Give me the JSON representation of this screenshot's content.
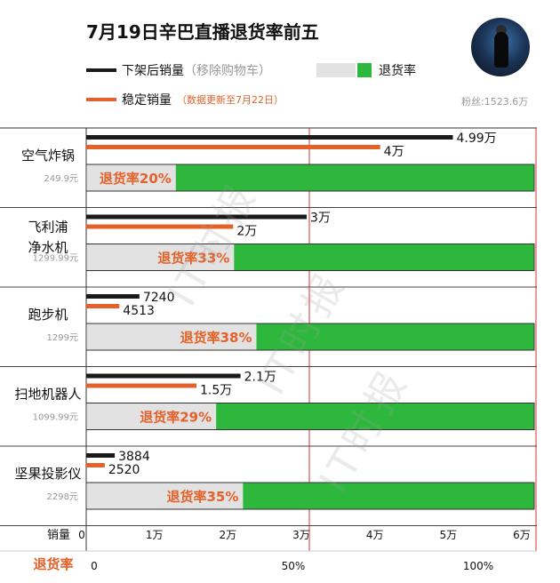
{
  "header": {
    "title": "7月19日辛巴直播退货率前五",
    "legend_takedown": "下架后销量",
    "legend_takedown_note": "（移除购物车）",
    "legend_return_rate": "退货率",
    "legend_stable": "稳定销量",
    "legend_stable_note": "（数据更新至7月22日）",
    "fans": "粉丝:1523.6万",
    "watermark": "IT时报"
  },
  "colors": {
    "takedown": "#1a1a1a",
    "stable": "#e4622a",
    "return_rate": "#2db83d",
    "return_bg": "#e2e2e2",
    "grid_red": "#d83030"
  },
  "chart_data": [
    {
      "type": "bar",
      "categories": [
        "空气炸锅",
        "飞利浦净水机",
        "跑步机",
        "扫地机器人",
        "坚果投影仪"
      ],
      "category_lines": [
        [
          "空气炸锅"
        ],
        [
          "飞利浦",
          "净水机"
        ],
        [
          "跑步机"
        ],
        [
          "扫地机器人"
        ],
        [
          "坚果投影仪"
        ]
      ],
      "prices": [
        "249.9元",
        "1299.99元",
        "1299元",
        "1099.99元",
        "2298元"
      ],
      "series": [
        {
          "name": "下架后销量",
          "values": [
            49900,
            30000,
            7240,
            21000,
            3884
          ],
          "labels": [
            "4.99万",
            "3万",
            "7240",
            "2.1万",
            "3884"
          ]
        },
        {
          "name": "稳定销量",
          "values": [
            40000,
            20000,
            4513,
            15000,
            2520
          ],
          "labels": [
            "4万",
            "2万",
            "4513",
            "1.5万",
            "2520"
          ]
        }
      ],
      "xlabel": "销量",
      "xlim": [
        0,
        60000
      ],
      "x_ticks": [
        0,
        10000,
        20000,
        30000,
        40000,
        50000,
        60000
      ],
      "x_tick_labels": [
        "0",
        "1万",
        "2万",
        "3万",
        "4万",
        "5万",
        "6万"
      ]
    },
    {
      "type": "bar",
      "categories": [
        "空气炸锅",
        "飞利浦净水机",
        "跑步机",
        "扫地机器人",
        "坚果投影仪"
      ],
      "series": [
        {
          "name": "退货率",
          "values": [
            20,
            33,
            38,
            29,
            35
          ],
          "labels": [
            "退货率20%",
            "退货率33%",
            "退货率38%",
            "退货率29%",
            "退货率35%"
          ]
        }
      ],
      "xlabel": "退货率",
      "xlim": [
        0,
        100
      ],
      "x_ticks": [
        0,
        50,
        100
      ],
      "x_tick_labels": [
        "0",
        "50%",
        "100%"
      ]
    }
  ]
}
